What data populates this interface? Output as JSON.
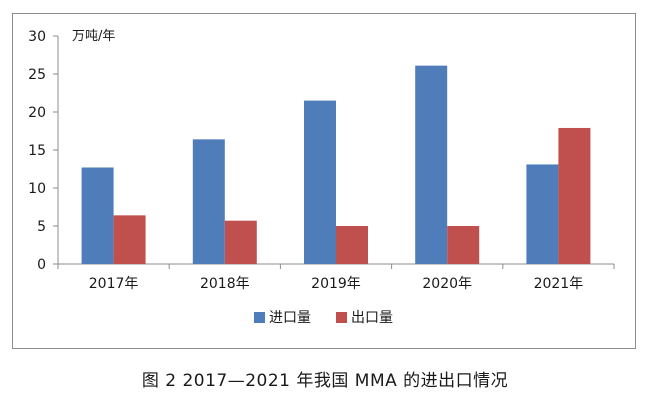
{
  "chart_data": {
    "type": "bar",
    "title": "",
    "xlabel": "",
    "ylabel": "",
    "unit": "万吨/年",
    "categories": [
      "2017年",
      "2018年",
      "2019年",
      "2020年",
      "2021年"
    ],
    "series": [
      {
        "name": "进口量",
        "color": "#4f7db9",
        "values": [
          12.7,
          16.4,
          21.5,
          26.1,
          13.1
        ]
      },
      {
        "name": "出口量",
        "color": "#c0504d",
        "values": [
          6.4,
          5.7,
          5.0,
          5.0,
          17.9
        ]
      }
    ],
    "ylim": [
      0,
      30
    ],
    "yticks": [
      0,
      5,
      10,
      15,
      20,
      25,
      30
    ],
    "grid": false,
    "legend": "bottom-center"
  },
  "caption": "图 2  2017—2021 年我国 MMA 的进出口情况"
}
